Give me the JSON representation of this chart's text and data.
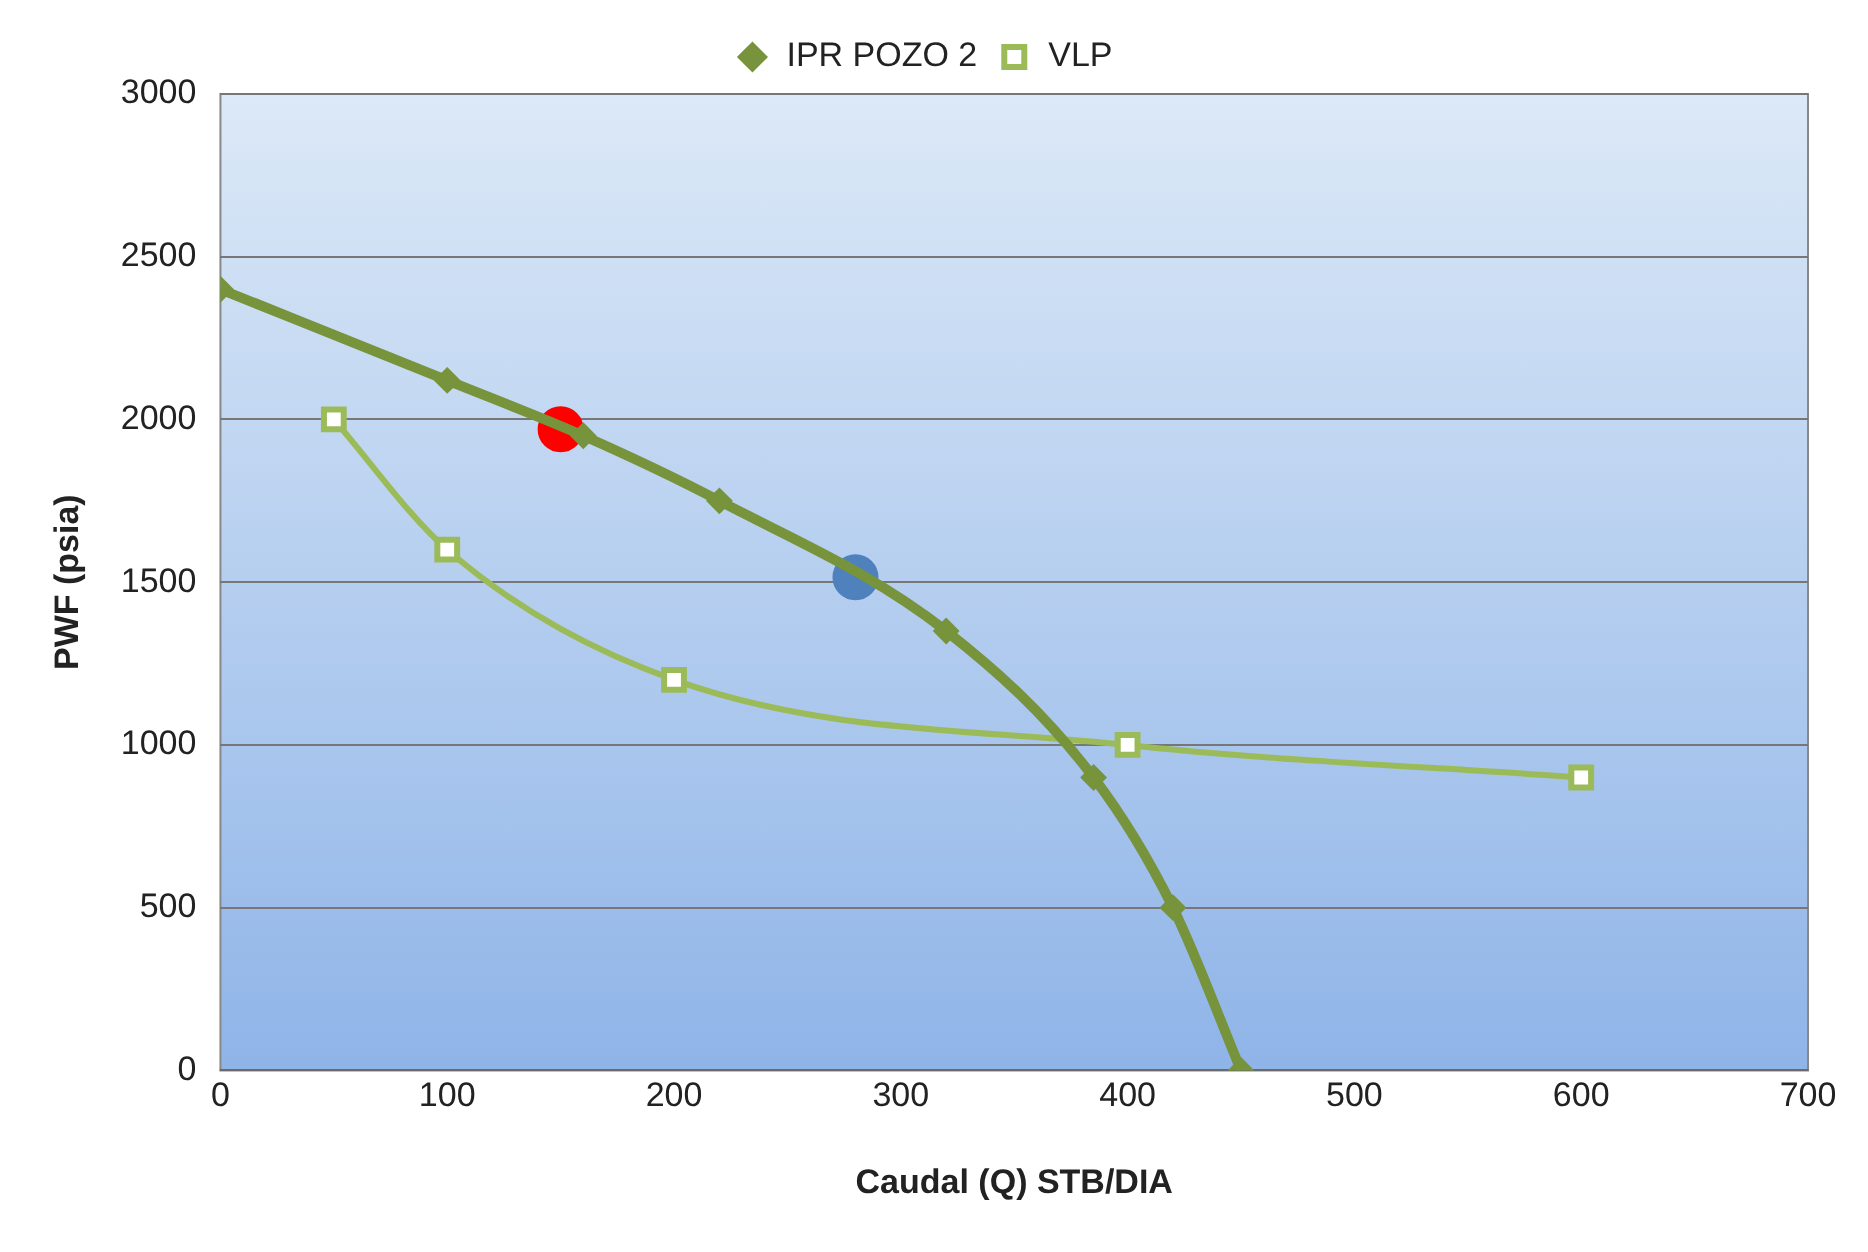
{
  "chart_data": {
    "type": "line",
    "xlabel": "Caudal (Q) STB/DIA",
    "ylabel": "PWF (psia)",
    "xlim": [
      0,
      700
    ],
    "xticks": [
      0,
      100,
      200,
      300,
      400,
      500,
      600,
      700
    ],
    "ylim": [
      0,
      3000
    ],
    "yticks": [
      0,
      500,
      1000,
      1500,
      2000,
      2500,
      3000
    ],
    "grid": "y",
    "legend": "top",
    "series": [
      {
        "name": "IPR POZO 2",
        "color": "#77933c",
        "marker": "diamond",
        "x": [
          0,
          100,
          160,
          220,
          320,
          385,
          420,
          450
        ],
        "values": [
          2400,
          2120,
          1950,
          1750,
          1350,
          900,
          500,
          0
        ]
      },
      {
        "name": "VLP",
        "color": "#9bbb59",
        "marker": "square",
        "x": [
          50,
          100,
          200,
          400,
          600
        ],
        "values": [
          2000,
          1600,
          1200,
          1000,
          900
        ]
      },
      {
        "type": "scatter",
        "color": "#ff0000",
        "marker": "circle",
        "x": [
          150
        ],
        "values": [
          1970
        ]
      },
      {
        "type": "scatter",
        "color": "#4f81bd",
        "marker": "circle",
        "x": [
          280
        ],
        "values": [
          1515
        ]
      }
    ]
  }
}
